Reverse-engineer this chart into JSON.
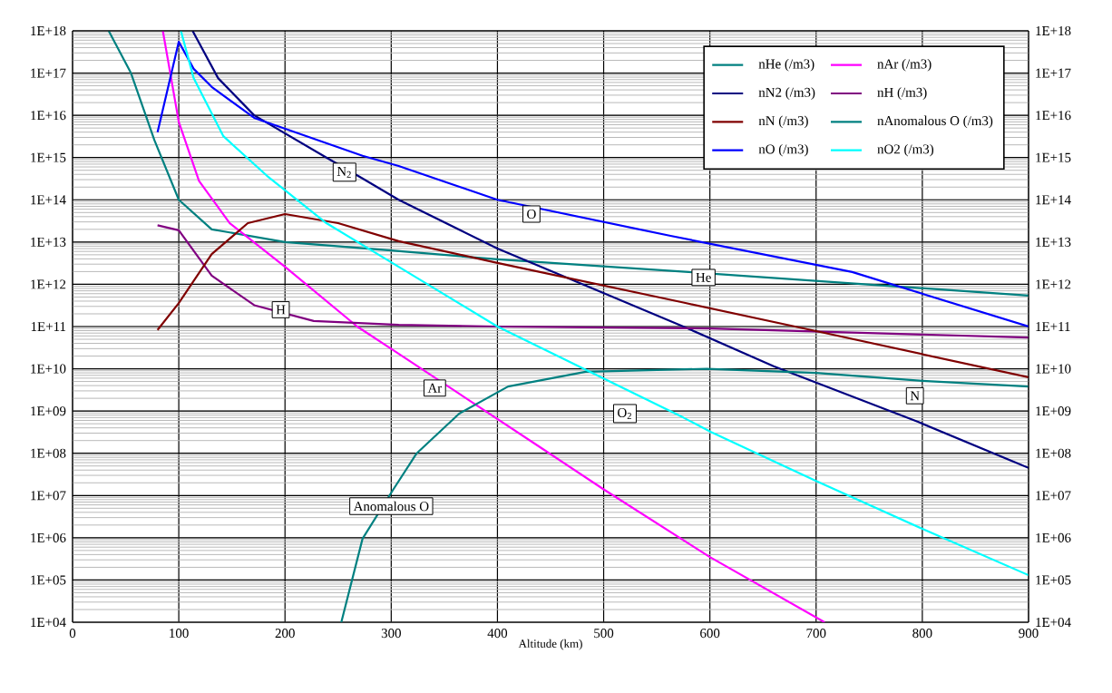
{
  "chart_data": {
    "type": "line",
    "xlabel": "Altitude (km)",
    "xlim": [
      0,
      900
    ],
    "xticks": [
      0,
      100,
      200,
      300,
      400,
      500,
      600,
      700,
      800,
      900
    ],
    "ylim": [
      10000.0,
      1e+18
    ],
    "log": "y",
    "grid": true,
    "legend": "top right",
    "yticks": [
      {
        "value": 10000.0,
        "label": "1E+04"
      },
      {
        "value": 100000.0,
        "label": "1E+05"
      },
      {
        "value": 1000000.0,
        "label": "1E+06"
      },
      {
        "value": 10000000.0,
        "label": "1E+07"
      },
      {
        "value": 100000000.0,
        "label": "1E+08"
      },
      {
        "value": 1000000000.0,
        "label": "1E+09"
      },
      {
        "value": 10000000000.0,
        "label": "1E+10"
      },
      {
        "value": 100000000000.0,
        "label": "1E+11"
      },
      {
        "value": 1000000000000.0,
        "label": "1E+12"
      },
      {
        "value": 10000000000000.0,
        "label": "1E+13"
      },
      {
        "value": 100000000000000.0,
        "label": "1E+14"
      },
      {
        "value": 1000000000000000.0,
        "label": "1E+15"
      },
      {
        "value": 1e+16,
        "label": "1E+16"
      },
      {
        "value": 1e+17,
        "label": "1E+17"
      },
      {
        "value": 1e+18,
        "label": "1E+18"
      }
    ],
    "series": [
      {
        "name": "nHe (/m3)",
        "color": "#008080",
        "x": [
          34,
          55,
          77,
          100,
          131,
          200,
          300,
          400,
          580,
          900
        ],
        "values": [
          1e+18,
          1e+17,
          2600000000000000.0,
          100000000000000.0,
          20000000000000.0,
          10000000000000.0,
          6300000000000.0,
          3900000000000.0,
          1950000000000.0,
          540000000000.0
        ]
      },
      {
        "name": "nAr (/m3)",
        "color": "#ff00ff",
        "x": [
          85,
          100,
          119,
          148,
          200,
          268,
          302,
          444,
          500,
          600,
          708
        ],
        "values": [
          1e+18,
          7000000000000000.0,
          280000000000000.0,
          28000000000000.0,
          2600000000000.0,
          100000000000.0,
          27500000000.0,
          120000000.0,
          14000000.0,
          350000.0,
          10000.0
        ]
      },
      {
        "name": "nN2 (/m3)",
        "color": "#000080",
        "x": [
          113,
          137,
          171,
          239,
          273,
          307,
          400,
          575,
          660,
          797,
          900
        ],
        "values": [
          1e+18,
          7.6e+16,
          1e+16,
          1000000000000000.0,
          320000000000000.0,
          100000000000000.0,
          7000000000000.0,
          100000000000.0,
          11500000000.0,
          540000000.0,
          45000000.0
        ]
      },
      {
        "name": "nH (/m3)",
        "color": "#800080",
        "x": [
          80,
          100,
          131,
          171,
          227,
          307,
          400,
          600,
          900
        ],
        "values": [
          25000000000000.0,
          19000000000000.0,
          1600000000000.0,
          320000000000.0,
          135000000000.0,
          110000000000.0,
          100000000000.0,
          90000000000.0,
          55000000000.0
        ]
      },
      {
        "name": "nN (/m3)",
        "color": "#800000",
        "x": [
          80,
          100,
          131,
          165,
          200,
          250,
          307,
          400,
          575,
          700,
          900
        ],
        "values": [
          83000000000.0,
          360000000000.0,
          5200000000000.0,
          28000000000000.0,
          46000000000000.0,
          28000000000000.0,
          10500000000000.0,
          3200000000000.0,
          370000000000.0,
          78000000000.0,
          6300000000.0
        ]
      },
      {
        "name": "nAnomalous O (/m3)",
        "color": "#008080",
        "x": [
          253,
          273,
          302,
          324,
          364,
          410,
          483,
          597,
          700,
          800,
          900
        ],
        "values": [
          10000.0,
          950000.0,
          14000000.0,
          100000000.0,
          870000000.0,
          3800000000.0,
          8500000000.0,
          10000000000.0,
          8000000000.0,
          5200000000.0,
          3800000000.0
        ]
      },
      {
        "name": "nO (/m3)",
        "color": "#0000ff",
        "x": [
          80,
          100,
          114,
          131,
          171,
          273,
          307,
          400,
          563,
          734,
          900
        ],
        "values": [
          4000000000000000.0,
          5.5e+17,
          1.26e+17,
          4.7e+16,
          8700000000000000.0,
          1100000000000000.0,
          630000000000000.0,
          100000000000000.0,
          14000000000000.0,
          1950000000000.0,
          100000000000.0
        ]
      },
      {
        "name": "nO2 (/m3)",
        "color": "#00ffff",
        "x": [
          102,
          114,
          142,
          183,
          239,
          307,
          400,
          575,
          601,
          700,
          802,
          900
        ],
        "values": [
          1e+18,
          7.6e+16,
          3200000000000000.0,
          370000000000000.0,
          28000000000000.0,
          2600000000000.0,
          100000000000.0,
          700000000.0,
          320000000.0,
          22000000.0,
          1550000.0,
          130000.0
        ]
      }
    ],
    "annotations": [
      {
        "text": "N$_{2}$",
        "x": 256,
        "y": 450000000000000.0
      },
      {
        "text": "O",
        "x": 432,
        "y": 46000000000000.0
      },
      {
        "text": "He",
        "x": 594,
        "y": 1450000000000.0
      },
      {
        "text": "H",
        "x": 196,
        "y": 250000000000.0
      },
      {
        "text": "Ar",
        "x": 341,
        "y": 3500000000.0
      },
      {
        "text": "O$_{2}$",
        "x": 520,
        "y": 870000000.0
      },
      {
        "text": "N",
        "x": 793,
        "y": 2300000000.0
      },
      {
        "text": "Anomalous O",
        "x": 300,
        "y": 5600000.0
      }
    ]
  }
}
